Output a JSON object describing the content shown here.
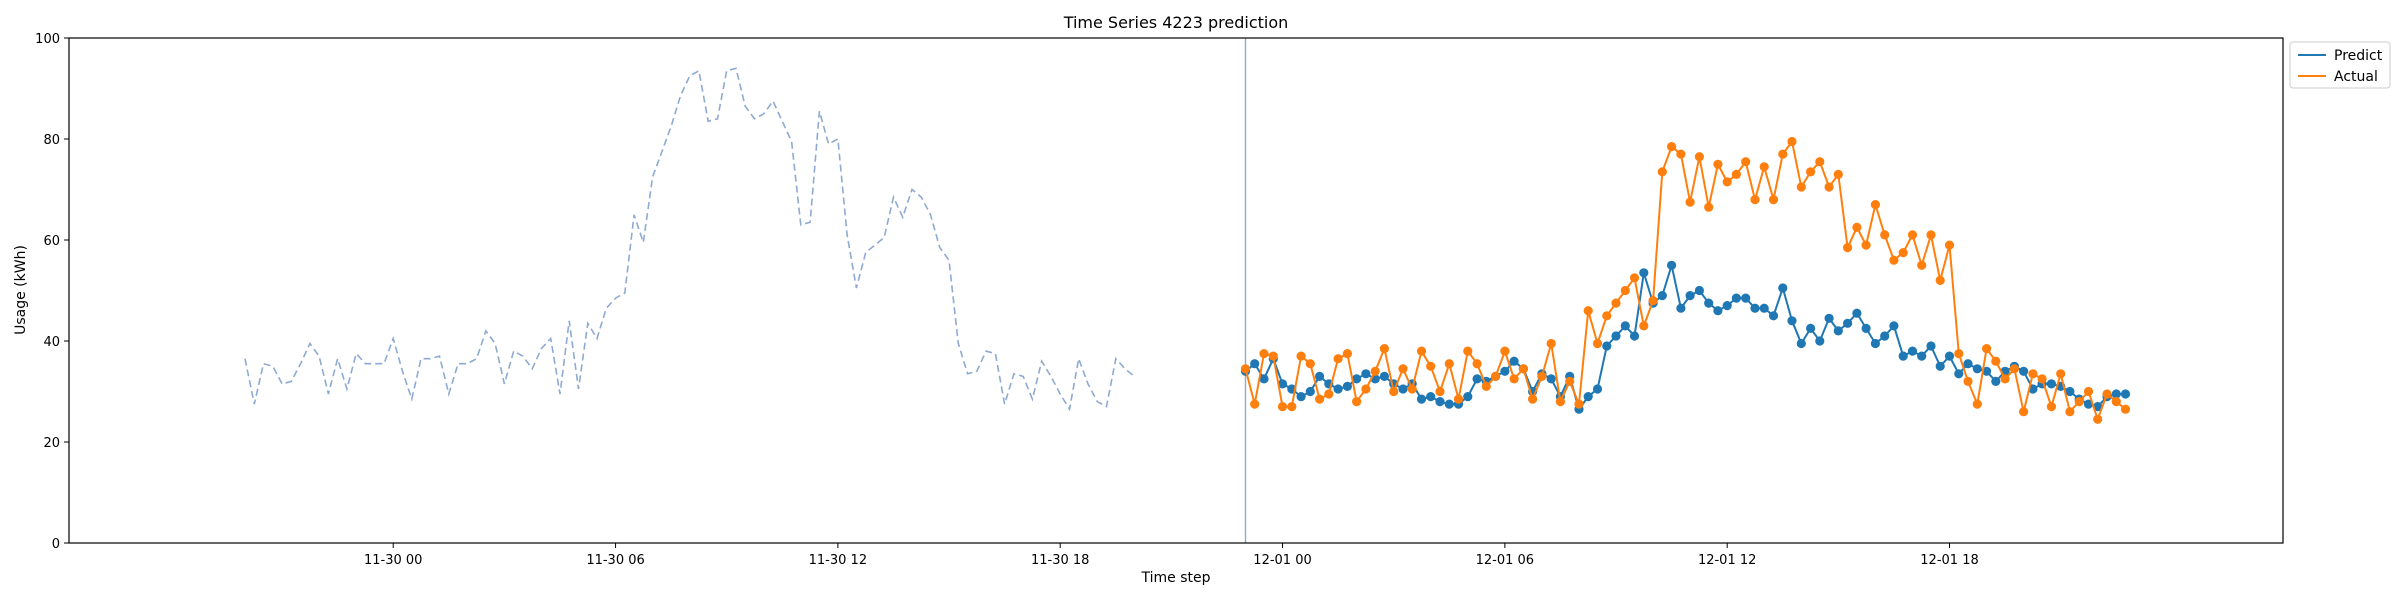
{
  "chart_data": {
    "type": "line",
    "title": "Time Series 4223 prediction",
    "xlabel": "Time step",
    "ylabel": "Usage (kWh)",
    "ylim": [
      0,
      100
    ],
    "yticks": [
      "0",
      "20",
      "40",
      "60",
      "80",
      "100"
    ],
    "xlim": [
      "2024-11-29 15:15",
      "2024-12-02 03:00"
    ],
    "xticks": [
      {
        "t": "2024-11-30 00:00",
        "label": "11-30 00"
      },
      {
        "t": "2024-11-30 06:00",
        "label": "11-30 06"
      },
      {
        "t": "2024-11-30 12:00",
        "label": "11-30 12"
      },
      {
        "t": "2024-11-30 18:00",
        "label": "11-30 18"
      },
      {
        "t": "2024-12-01 00:00",
        "label": "12-01 00"
      },
      {
        "t": "2024-12-01 06:00",
        "label": "12-01 06"
      },
      {
        "t": "2024-12-01 12:00",
        "label": "12-01 12"
      },
      {
        "t": "2024-12-01 18:00",
        "label": "12-01 18"
      }
    ],
    "forecast_start": "2024-11-30 23:00",
    "history": {
      "start": "2024-11-29 20:00",
      "interval_minutes": 15,
      "color": "#8eaad2",
      "values": [
        36.5,
        27.5,
        35.5,
        35.0,
        31.5,
        32.0,
        35.5,
        39.5,
        37.0,
        29.5,
        36.5,
        30.5,
        37.5,
        35.5,
        35.5,
        35.5,
        40.5,
        34.0,
        28.5,
        36.5,
        36.5,
        37.0,
        29.5,
        35.5,
        35.5,
        36.5,
        42.0,
        39.5,
        31.5,
        38.0,
        37.0,
        34.5,
        38.5,
        40.5,
        29.5,
        44.0,
        30.5,
        43.5,
        40.5,
        46.5,
        48.5,
        49.5,
        65.0,
        59.5,
        72.5,
        77.5,
        82.5,
        88.5,
        92.5,
        93.5,
        83.5,
        84.0,
        93.5,
        94.0,
        86.5,
        84.0,
        85.0,
        87.5,
        83.5,
        79.5,
        63.0,
        63.5,
        85.5,
        79.0,
        80.0,
        61.0,
        50.5,
        57.5,
        59.0,
        60.5,
        68.5,
        64.5,
        70.0,
        68.5,
        65.0,
        58.5,
        56.0,
        39.5,
        33.5,
        34.0,
        38.0,
        37.5,
        27.5,
        33.5,
        33.0,
        28.5,
        36.0,
        33.0,
        29.5,
        26.5,
        36.5,
        31.5,
        28.0,
        27.0,
        36.5,
        34.5,
        33.0
      ]
    },
    "series": [
      {
        "name": "Predict",
        "color": "#1f77b4",
        "start": "2024-11-30 23:00",
        "interval_minutes": 15,
        "values": [
          34.0,
          35.5,
          32.5,
          36.5,
          31.5,
          30.5,
          29.0,
          30.0,
          33.0,
          31.5,
          30.5,
          31.0,
          32.5,
          33.5,
          32.5,
          33.0,
          31.5,
          30.5,
          31.5,
          28.5,
          29.0,
          28.0,
          27.5,
          27.5,
          29.0,
          32.5,
          32.0,
          33.0,
          34.0,
          36.0,
          34.5,
          30.0,
          33.5,
          32.5,
          29.0,
          33.0,
          26.5,
          29.0,
          30.5,
          39.0,
          41.0,
          43.0,
          41.0,
          53.5,
          47.5,
          49.0,
          55.0,
          46.5,
          49.0,
          50.0,
          47.5,
          46.0,
          47.0,
          48.5,
          48.5,
          46.5,
          46.5,
          45.0,
          50.5,
          44.0,
          39.5,
          42.5,
          40.0,
          44.5,
          42.0,
          43.5,
          45.5,
          42.5,
          39.5,
          41.0,
          43.0,
          37.0,
          38.0,
          37.0,
          39.0,
          35.0,
          37.0,
          33.5,
          35.5,
          34.5,
          34.0,
          32.0,
          34.0,
          35.0,
          34.0,
          30.5,
          31.5,
          31.5,
          31.0,
          30.0,
          28.5,
          27.5,
          27.0,
          29.0,
          29.5,
          29.5
        ]
      },
      {
        "name": "Actual",
        "color": "#ff7f0e",
        "start": "2024-11-30 23:00",
        "interval_minutes": 15,
        "values": [
          34.5,
          27.5,
          37.5,
          37.0,
          27.0,
          27.0,
          37.0,
          35.5,
          28.5,
          29.5,
          36.5,
          37.5,
          28.0,
          30.5,
          34.0,
          38.5,
          30.0,
          34.5,
          30.5,
          38.0,
          35.0,
          30.0,
          35.5,
          28.5,
          38.0,
          35.5,
          31.0,
          33.0,
          38.0,
          32.5,
          34.5,
          28.5,
          33.0,
          39.5,
          28.0,
          32.0,
          27.5,
          46.0,
          39.5,
          45.0,
          47.5,
          50.0,
          52.5,
          43.0,
          48.0,
          73.5,
          78.5,
          77.0,
          67.5,
          76.5,
          66.5,
          75.0,
          71.5,
          73.0,
          75.5,
          68.0,
          74.5,
          68.0,
          77.0,
          79.5,
          70.5,
          73.5,
          75.5,
          70.5,
          73.0,
          58.5,
          62.5,
          59.0,
          67.0,
          61.0,
          56.0,
          57.5,
          61.0,
          55.0,
          61.0,
          52.0,
          59.0,
          37.5,
          32.0,
          27.5,
          38.5,
          36.0,
          32.5,
          34.5,
          26.0,
          33.5,
          32.5,
          27.0,
          33.5,
          26.0,
          28.0,
          30.0,
          24.5,
          29.5,
          28.0,
          26.5
        ]
      }
    ],
    "legend": {
      "placement": "outside top-right"
    },
    "grid": false
  }
}
